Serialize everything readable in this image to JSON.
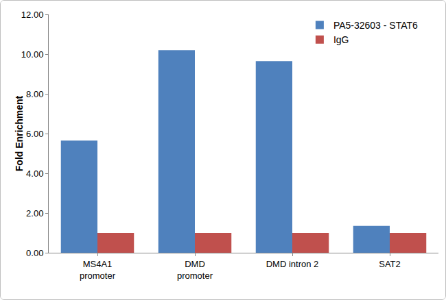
{
  "chart_data": {
    "type": "bar",
    "y_label": "Fold Enrichment",
    "categories": [
      "MS4A1\npromoter",
      "DMD\npromoter",
      "DMD intron 2",
      "SAT2"
    ],
    "series": [
      {
        "name": "PA5-32603 - STAT6",
        "color": "#4f81bd",
        "values": [
          5.65,
          10.2,
          9.65,
          1.35
        ]
      },
      {
        "name": "IgG",
        "color": "#c0504d",
        "values": [
          1.0,
          1.0,
          1.0,
          1.0
        ]
      }
    ],
    "ylim": [
      0,
      12
    ],
    "yticks": [
      {
        "value": 0,
        "label": "0.00"
      },
      {
        "value": 2,
        "label": "2.00"
      },
      {
        "value": 4,
        "label": "4.00"
      },
      {
        "value": 6,
        "label": "6.00"
      },
      {
        "value": 8,
        "label": "8.00"
      },
      {
        "value": 10,
        "label": "10.00"
      },
      {
        "value": 12,
        "label": "12.00"
      }
    ],
    "grid": false,
    "legend": "top-right"
  }
}
